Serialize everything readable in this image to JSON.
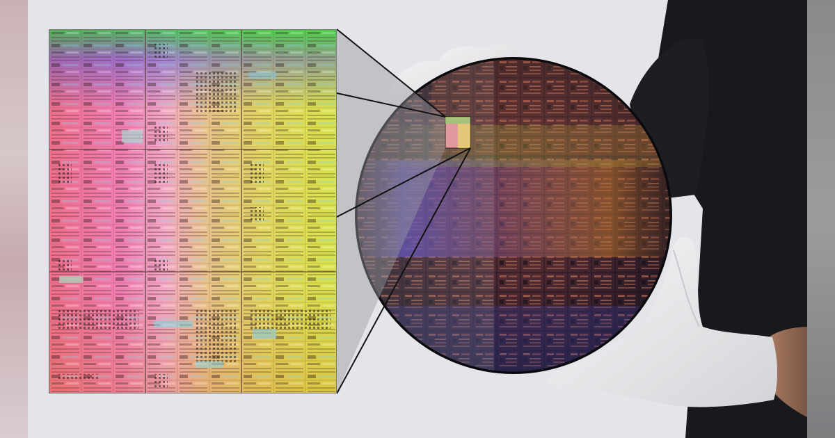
{
  "scene": {
    "subject": "wafer-with-magnified-die",
    "colors": {
      "background": "#e4e5ea",
      "wafer_dark": "#2a1c27",
      "shirt": "#17191d",
      "glove": "#eeeef0",
      "callout_line": "#111111"
    },
    "icons": [
      "wafer-icon",
      "glove-icon"
    ]
  }
}
